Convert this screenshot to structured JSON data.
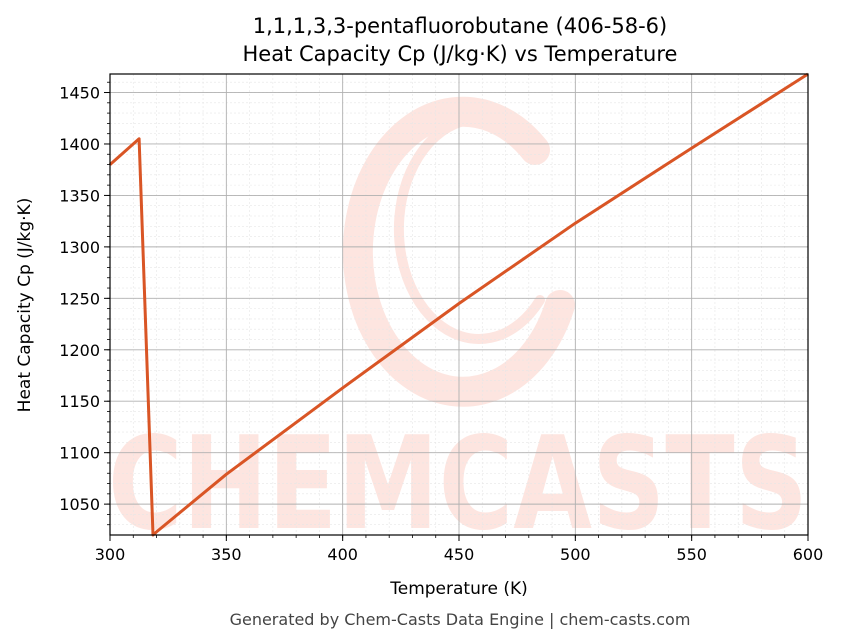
{
  "chart_data": {
    "type": "line",
    "title": "1,1,1,3,3-pentafluorobutane (406-58-6)",
    "subtitle": "Heat Capacity Cp (J/kg·K) vs Temperature",
    "xlabel": "Temperature (K)",
    "ylabel": "Heat Capacity Cp (J/kg·K)",
    "xlim": [
      300,
      600
    ],
    "ylim": [
      1020,
      1468
    ],
    "xticks": [
      300,
      350,
      400,
      450,
      500,
      550,
      600
    ],
    "yticks": [
      1050,
      1100,
      1150,
      1200,
      1250,
      1300,
      1350,
      1400,
      1450
    ],
    "grid": true,
    "line_color": "#d95525",
    "series": [
      {
        "x": [
          300,
          312.5,
          318.5,
          320,
          350,
          400,
          450,
          500,
          550,
          600
        ],
        "y": [
          1380,
          1405,
          1020,
          1023,
          1079,
          1163,
          1245,
          1323,
          1396,
          1468
        ]
      }
    ]
  },
  "watermark": {
    "text": "CHEMCASTS",
    "color": "#fde3dd"
  },
  "footer": "Generated by Chem-Casts Data Engine | chem-casts.com"
}
